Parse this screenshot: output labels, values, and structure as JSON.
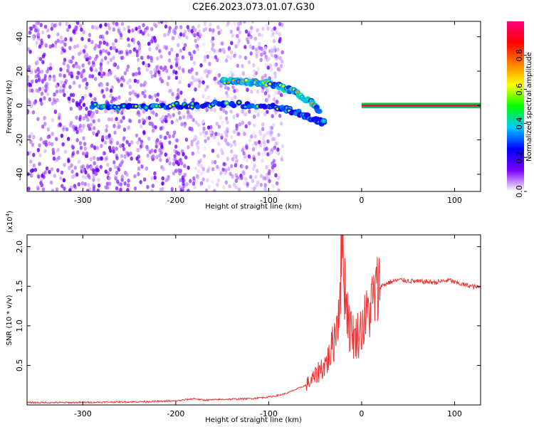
{
  "title": "C2E6.2023.073.01.07.G30",
  "chart_data": [
    {
      "type": "heatmap",
      "xlabel": "Height of straight line (km)",
      "ylabel": "Frequency (Hz)",
      "xlim": [
        -360,
        128
      ],
      "ylim": [
        -50,
        49
      ],
      "x_ticks": [
        -300,
        -200,
        -100,
        0,
        100
      ],
      "y_ticks": [
        -40,
        -20,
        0,
        20,
        40
      ],
      "colorbar": {
        "label": "Normalized spectral amplitude",
        "range": [
          0.0,
          1.0
        ],
        "ticks": [
          0.0,
          0.2,
          0.4,
          0.6,
          0.8
        ],
        "colormap": [
          "#ffffff",
          "#7b00ff",
          "#0000ff",
          "#00c8ff",
          "#00ff00",
          "#ffff00",
          "#ff8000",
          "#ff0000",
          "#ff0080"
        ]
      },
      "features": [
        {
          "name": "noise-field",
          "x_range": [
            -360,
            -105
          ],
          "y_range": [
            -50,
            49
          ],
          "amplitude": 0.05
        },
        {
          "name": "main-carrier",
          "x": [
            -290,
            -250,
            -200,
            -150,
            -100,
            -70,
            -50,
            -40
          ],
          "y": [
            0,
            -1,
            0,
            1,
            0,
            -4,
            -8,
            -10
          ],
          "amplitude": 0.4
        },
        {
          "name": "upper-sideband",
          "x": [
            -150,
            -130,
            -100,
            -75,
            -55,
            -45
          ],
          "y": [
            14,
            14,
            13,
            9,
            2,
            -3
          ],
          "amplitude": 0.55
        },
        {
          "name": "carrier-line",
          "x": [
            0,
            128
          ],
          "y": [
            0,
            0
          ],
          "amplitude": 0.95
        }
      ]
    },
    {
      "type": "line",
      "xlabel": "Height of straight line (km)",
      "ylabel": "SNR (10 * v/v)",
      "y_scale_label": "(x10^4)",
      "xlim": [
        -360,
        128
      ],
      "ylim": [
        0,
        2.15
      ],
      "x_ticks": [
        -300,
        -200,
        -100,
        0,
        100
      ],
      "y_ticks": [
        0.5,
        1.0,
        1.5,
        2.0
      ],
      "color": "#ee3333",
      "series": [
        {
          "x": [
            -360,
            -320,
            -280,
            -240,
            -200,
            -180,
            -170,
            -150,
            -120,
            -100,
            -90,
            -80,
            -70,
            -60,
            -55,
            -50,
            -45,
            -40,
            -35,
            -30,
            -25,
            -22,
            -20,
            -18,
            -15,
            -12,
            -10,
            -8,
            -5,
            -2,
            0,
            5,
            10,
            15,
            20,
            30,
            40,
            50,
            60,
            80,
            95,
            100,
            110,
            128
          ],
          "y": [
            0.03,
            0.03,
            0.035,
            0.04,
            0.05,
            0.08,
            0.06,
            0.07,
            0.08,
            0.1,
            0.12,
            0.15,
            0.2,
            0.25,
            0.3,
            0.35,
            0.45,
            0.5,
            0.6,
            0.8,
            1.2,
            1.8,
            2.1,
            1.5,
            1.2,
            0.9,
            1.0,
            0.8,
            0.9,
            0.9,
            1.0,
            1.1,
            1.25,
            1.4,
            1.5,
            1.55,
            1.58,
            1.57,
            1.56,
            1.55,
            1.58,
            1.55,
            1.52,
            1.48
          ]
        }
      ]
    }
  ]
}
